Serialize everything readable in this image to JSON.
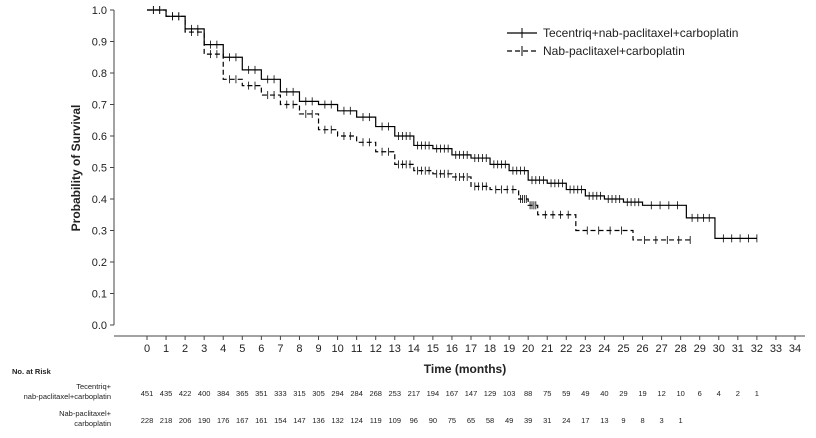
{
  "chart_data": {
    "type": "line",
    "title": "",
    "xlabel": "Time (months)",
    "ylabel": "Probability of Survival",
    "xlim": [
      0,
      34
    ],
    "ylim": [
      0,
      1
    ],
    "xticks": [
      "0",
      "1",
      "2",
      "3",
      "4",
      "5",
      "6",
      "7",
      "8",
      "9",
      "10",
      "11",
      "12",
      "13",
      "14",
      "15",
      "16",
      "17",
      "18",
      "19",
      "20",
      "21",
      "22",
      "23",
      "24",
      "25",
      "26",
      "27",
      "28",
      "29",
      "30",
      "31",
      "32",
      "33",
      "34"
    ],
    "yticks": [
      "0.0",
      "0.1",
      "0.2",
      "0.3",
      "0.4",
      "0.5",
      "0.6",
      "0.7",
      "0.8",
      "0.9",
      "1.0"
    ],
    "legend_position": "top-right",
    "series": [
      {
        "name": "Tecentriq+nab-paclitaxel+carboplatin",
        "style": "solid",
        "color": "#000000",
        "x": [
          0,
          1,
          2,
          3,
          4,
          5,
          6,
          7,
          8,
          9,
          10,
          11,
          12,
          13,
          14,
          15,
          16,
          17,
          18,
          19,
          20,
          21,
          22,
          23,
          24,
          25,
          26,
          28.3,
          29.8,
          32
        ],
        "y": [
          1,
          0.98,
          0.94,
          0.89,
          0.85,
          0.81,
          0.78,
          0.74,
          0.71,
          0.7,
          0.68,
          0.66,
          0.63,
          0.6,
          0.57,
          0.56,
          0.54,
          0.53,
          0.51,
          0.49,
          0.46,
          0.45,
          0.43,
          0.41,
          0.4,
          0.39,
          0.38,
          0.34,
          0.275,
          0.275
        ]
      },
      {
        "name": "Nab-paclitaxel+carboplatin",
        "style": "dashed",
        "color": "#000000",
        "x": [
          0,
          1,
          2,
          3,
          4,
          5,
          6,
          7,
          8,
          9,
          10,
          11,
          12,
          13,
          14,
          15,
          16,
          17,
          18,
          19.5,
          20,
          20.5,
          22.5,
          25.5,
          28.5
        ],
        "y": [
          1,
          0.98,
          0.93,
          0.86,
          0.78,
          0.76,
          0.73,
          0.7,
          0.67,
          0.62,
          0.6,
          0.58,
          0.55,
          0.51,
          0.49,
          0.48,
          0.47,
          0.44,
          0.43,
          0.4,
          0.38,
          0.35,
          0.3,
          0.27,
          0.27
        ]
      }
    ],
    "risk_table": {
      "title": "No. at Risk",
      "rows": [
        {
          "label_line1": "Tecentriq+",
          "label_line2": "nab-paclitaxel+carboplatin",
          "values": [
            "451",
            "435",
            "422",
            "400",
            "384",
            "365",
            "351",
            "333",
            "315",
            "305",
            "294",
            "284",
            "268",
            "253",
            "217",
            "194",
            "167",
            "147",
            "129",
            "103",
            "88",
            "75",
            "59",
            "49",
            "40",
            "29",
            "19",
            "12",
            "10",
            "6",
            "4",
            "2",
            "1"
          ]
        },
        {
          "label_line1": "Nab-paclitaxel+",
          "label_line2": "carboplatin",
          "values": [
            "228",
            "218",
            "206",
            "190",
            "176",
            "167",
            "161",
            "154",
            "147",
            "136",
            "132",
            "124",
            "119",
            "109",
            "96",
            "90",
            "75",
            "65",
            "58",
            "49",
            "39",
            "31",
            "24",
            "17",
            "13",
            "9",
            "8",
            "3",
            "1"
          ]
        }
      ]
    }
  }
}
